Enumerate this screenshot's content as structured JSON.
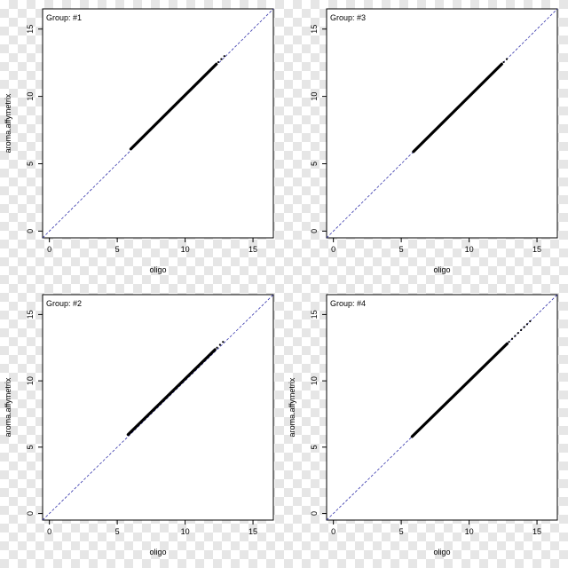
{
  "chart_data": [
    {
      "type": "scatter",
      "title": "Group: #1",
      "xlabel": "oligo",
      "ylabel": "aroma.affymetrix",
      "xlim": [
        -0.5,
        16.5
      ],
      "ylim": [
        -0.5,
        16.5
      ],
      "xticks": [
        "0",
        "5",
        "10",
        "15"
      ],
      "yticks": [
        "0",
        "5",
        "10",
        "15"
      ],
      "reference_line": {
        "slope": 1,
        "intercept": 0,
        "style": "dashed",
        "color": "#3333aa"
      },
      "points": {
        "x_from": 6.0,
        "x_to": 12.3,
        "sparse_to": 13.1,
        "offset": 0.1
      },
      "grid": false
    },
    {
      "type": "scatter",
      "title": "Group: #3",
      "xlabel": "oligo",
      "ylabel": "",
      "xlim": [
        -0.5,
        16.5
      ],
      "ylim": [
        -0.5,
        16.5
      ],
      "xticks": [
        "0",
        "5",
        "10",
        "15"
      ],
      "yticks": [
        "0",
        "5",
        "10",
        "15"
      ],
      "reference_line": {
        "slope": 1,
        "intercept": 0,
        "style": "dashed",
        "color": "#3333aa"
      },
      "points": {
        "x_from": 5.9,
        "x_to": 12.4,
        "sparse_to": 12.8,
        "offset": 0.0
      },
      "grid": false
    },
    {
      "type": "scatter",
      "title": "Group: #2",
      "xlabel": "oligo",
      "ylabel": "aroma.affymetrix",
      "xlim": [
        -0.5,
        16.5
      ],
      "ylim": [
        -0.5,
        16.5
      ],
      "xticks": [
        "0",
        "5",
        "10",
        "15"
      ],
      "yticks": [
        "0",
        "5",
        "10",
        "15"
      ],
      "reference_line": {
        "slope": 1,
        "intercept": 0,
        "style": "dashed",
        "color": "#3333aa"
      },
      "points": {
        "x_from": 5.8,
        "x_to": 12.2,
        "sparse_to": 12.9,
        "offset": 0.15
      },
      "grid": false
    },
    {
      "type": "scatter",
      "title": "Group: #4",
      "xlabel": "oligo",
      "ylabel": "aroma.affymetrix",
      "xlim": [
        -0.5,
        16.5
      ],
      "ylim": [
        -0.5,
        16.5
      ],
      "xticks": [
        "0",
        "5",
        "10",
        "15"
      ],
      "yticks": [
        "0",
        "5",
        "10",
        "15"
      ],
      "reference_line": {
        "slope": 1,
        "intercept": 0,
        "style": "dashed",
        "color": "#3333aa"
      },
      "points": {
        "x_from": 5.8,
        "x_to": 12.8,
        "sparse_to": 14.7,
        "offset": 0.0
      },
      "grid": false
    }
  ]
}
